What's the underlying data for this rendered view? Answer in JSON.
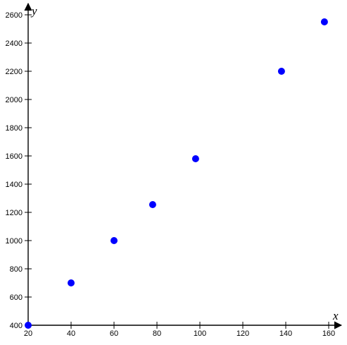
{
  "chart_data": {
    "type": "scatter",
    "title": "",
    "xlabel": "x",
    "ylabel": "y",
    "xlim": [
      20,
      160
    ],
    "ylim": [
      400,
      2600
    ],
    "x_ticks": [
      20,
      40,
      60,
      80,
      100,
      120,
      140,
      160
    ],
    "y_ticks": [
      400,
      600,
      800,
      1000,
      1200,
      1400,
      1600,
      1800,
      2000,
      2200,
      2400,
      2600
    ],
    "grid": false,
    "legend": "none",
    "marker_color": "#0000ff",
    "axis_color": "#000000",
    "series": [
      {
        "points": [
          {
            "x": 20,
            "y": 400
          },
          {
            "x": 40,
            "y": 700
          },
          {
            "x": 60,
            "y": 1000
          },
          {
            "x": 78,
            "y": 1255
          },
          {
            "x": 98,
            "y": 1580
          },
          {
            "x": 138,
            "y": 2200
          },
          {
            "x": 158,
            "y": 2550
          }
        ]
      }
    ]
  }
}
